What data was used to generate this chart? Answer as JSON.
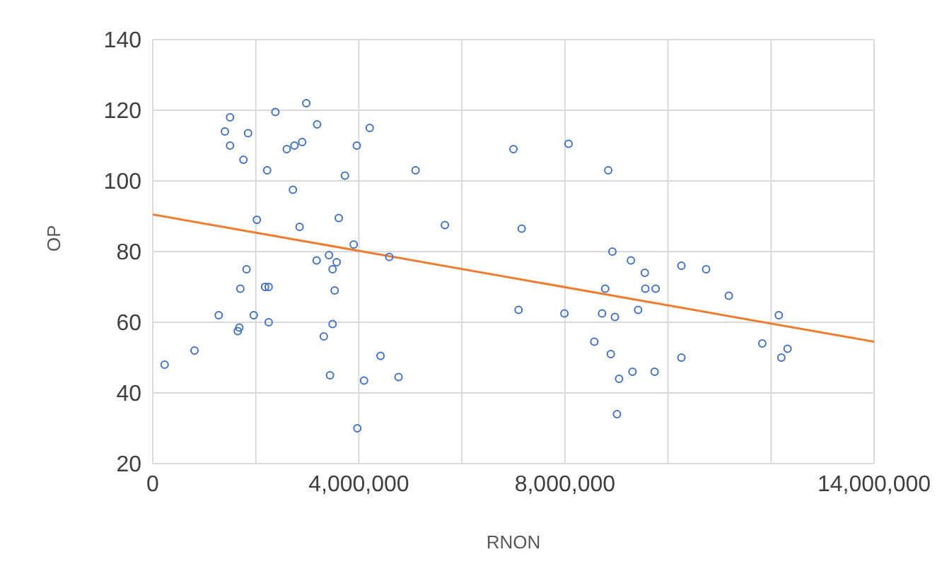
{
  "chart_data": {
    "type": "scatter",
    "xlabel": "RNON",
    "ylabel": "OP",
    "xlim": [
      0,
      14000000
    ],
    "xticks": [
      0,
      {
        "value": 2000000,
        "label": null
      },
      {
        "value": 4000000,
        "label": "4,000,000"
      },
      {
        "value": 6000000,
        "label": null
      },
      {
        "value": 8000000,
        "label": "8,000,000"
      },
      {
        "value": 10000000,
        "label": null
      },
      {
        "value": 12000000,
        "label": null
      },
      {
        "value": 14000000,
        "label": "14,000,000"
      }
    ],
    "ylim": [
      20,
      140
    ],
    "yticks": [
      20,
      40,
      60,
      80,
      100,
      120,
      140
    ],
    "grid": true,
    "marker": "circle",
    "series": [
      {
        "color": "#4472c4",
        "x": [
          1500000,
          1400000,
          1850000,
          1500000,
          1760000,
          2220000,
          2380000,
          2980000,
          3190000,
          2600000,
          2750000,
          2900000,
          4210000,
          3960000,
          3730000,
          5100000,
          7000000,
          2720000,
          2020000,
          3610000,
          2850000,
          5670000,
          7160000,
          3900000,
          3420000,
          3180000,
          3570000,
          3490000,
          4590000,
          1820000,
          1700000,
          2180000,
          2250000,
          3530000,
          7100000,
          1280000,
          1960000,
          2250000,
          3490000,
          1680000,
          1650000,
          3320000,
          810000,
          230000,
          4420000,
          3440000,
          4100000,
          4770000,
          3970000,
          8070000,
          8840000,
          8920000,
          9280000,
          9550000,
          10260000,
          10740000,
          8780000,
          9560000,
          9760000,
          11180000,
          7990000,
          8720000,
          8970000,
          9420000,
          12150000,
          8570000,
          8890000,
          10260000,
          9050000,
          9310000,
          9740000,
          9010000,
          11830000,
          12320000,
          12200000
        ],
        "values": [
          118,
          114,
          113.5,
          110,
          106,
          103,
          119.5,
          122,
          116,
          109,
          110,
          111,
          115,
          110,
          101.5,
          103,
          109,
          97.5,
          89,
          89.5,
          87,
          87.5,
          86.5,
          82,
          79,
          77.5,
          77,
          75,
          78.5,
          75,
          69.5,
          70,
          70,
          69,
          63.5,
          62,
          62,
          60,
          59.5,
          58.5,
          57.5,
          56,
          52,
          48,
          50.5,
          45,
          43.5,
          44.5,
          30,
          110.5,
          103,
          80,
          77.5,
          74,
          76,
          75,
          69.5,
          69.5,
          69.5,
          67.5,
          62.5,
          62.5,
          61.5,
          63.5,
          62,
          54.5,
          51,
          50,
          44,
          46,
          46,
          34,
          54,
          52.5,
          50
        ]
      },
      {
        "type": "line",
        "marker": "none",
        "color": "#ed7d31",
        "x": [
          0,
          14000000
        ],
        "values": [
          90.5,
          54.5
        ]
      }
    ]
  }
}
